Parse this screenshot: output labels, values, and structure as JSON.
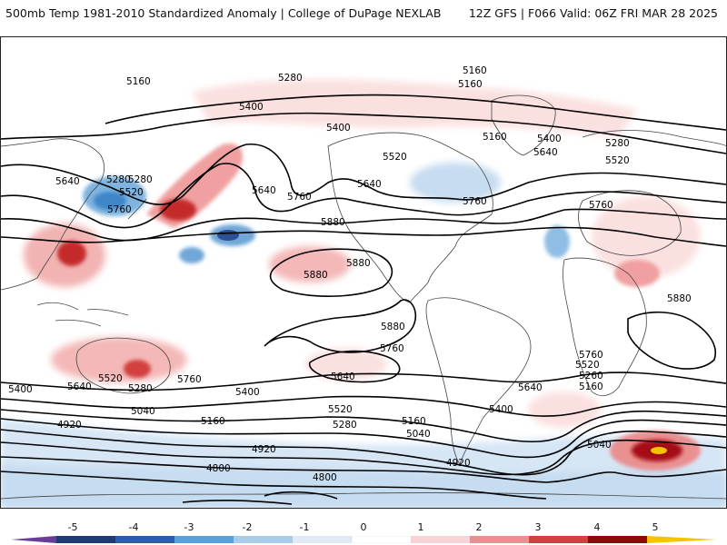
{
  "header": {
    "title_left": "500mb Temp 1981-2010 Standardized Anomaly | College of DuPage NEXLAB",
    "title_right": "12Z GFS | F066 Valid: 06Z FRI MAR 28 2025"
  },
  "map": {
    "contour_labels": [
      {
        "id": "c1",
        "text": "5160"
      },
      {
        "id": "c2",
        "text": "5280"
      },
      {
        "id": "c3",
        "text": "5160"
      },
      {
        "id": "c4",
        "text": "5160"
      },
      {
        "id": "c5",
        "text": "5400"
      },
      {
        "id": "c6",
        "text": "5400"
      },
      {
        "id": "c7",
        "text": "5280"
      },
      {
        "id": "c8",
        "text": "5520"
      },
      {
        "id": "c9",
        "text": "5400"
      },
      {
        "id": "c10",
        "text": "5160"
      },
      {
        "id": "c11",
        "text": "5280"
      },
      {
        "id": "c12",
        "text": "5640"
      },
      {
        "id": "c13",
        "text": "5520"
      },
      {
        "id": "c14",
        "text": "5640"
      },
      {
        "id": "c15",
        "text": "5280"
      },
      {
        "id": "c16",
        "text": "5520"
      },
      {
        "id": "c17",
        "text": "5760"
      },
      {
        "id": "c18",
        "text": "5640"
      },
      {
        "id": "c19",
        "text": "5760"
      },
      {
        "id": "c20",
        "text": "5640"
      },
      {
        "id": "c21",
        "text": "5760"
      },
      {
        "id": "c22",
        "text": "5760"
      },
      {
        "id": "c23",
        "text": "5880"
      },
      {
        "id": "c24",
        "text": "5880"
      },
      {
        "id": "c25",
        "text": "5880"
      },
      {
        "id": "c26",
        "text": "5880"
      },
      {
        "id": "c27",
        "text": "5880"
      },
      {
        "id": "c28",
        "text": "5760"
      },
      {
        "id": "c29",
        "text": "5760"
      },
      {
        "id": "c30",
        "text": "5520"
      },
      {
        "id": "c31",
        "text": "5760"
      },
      {
        "id": "c32",
        "text": "5280"
      },
      {
        "id": "c33",
        "text": "5640"
      },
      {
        "id": "c34",
        "text": "5400"
      },
      {
        "id": "c35",
        "text": "5640"
      },
      {
        "id": "c36",
        "text": "5520"
      },
      {
        "id": "c37",
        "text": "5260"
      },
      {
        "id": "c38",
        "text": "5160"
      },
      {
        "id": "c39",
        "text": "5400"
      },
      {
        "id": "c40",
        "text": "5640"
      },
      {
        "id": "c41",
        "text": "5400"
      },
      {
        "id": "c42",
        "text": "5040"
      },
      {
        "id": "c43",
        "text": "5520"
      },
      {
        "id": "c44",
        "text": "5160"
      },
      {
        "id": "c45",
        "text": "5280"
      },
      {
        "id": "c46",
        "text": "5160"
      },
      {
        "id": "c47",
        "text": "5040"
      },
      {
        "id": "c48",
        "text": "4920"
      },
      {
        "id": "c49",
        "text": "5040"
      },
      {
        "id": "c50",
        "text": "4920"
      },
      {
        "id": "c51",
        "text": "4920"
      },
      {
        "id": "c52",
        "text": "4800"
      },
      {
        "id": "c53",
        "text": "4800"
      }
    ]
  },
  "colorbar": {
    "labels": [
      "-5",
      "-4",
      "-3",
      "-2",
      "-1",
      "0",
      "1",
      "2",
      "3",
      "4",
      "5"
    ],
    "colors": [
      "#6a3d9a",
      "#1f3b73",
      "#2b5fa8",
      "#3f8fd2",
      "#8fbde3",
      "#cfe1f2",
      "#ffffff",
      "#f8d0d0",
      "#e99090",
      "#d24040",
      "#a50f15",
      "#6b0000",
      "#f5c400"
    ]
  }
}
